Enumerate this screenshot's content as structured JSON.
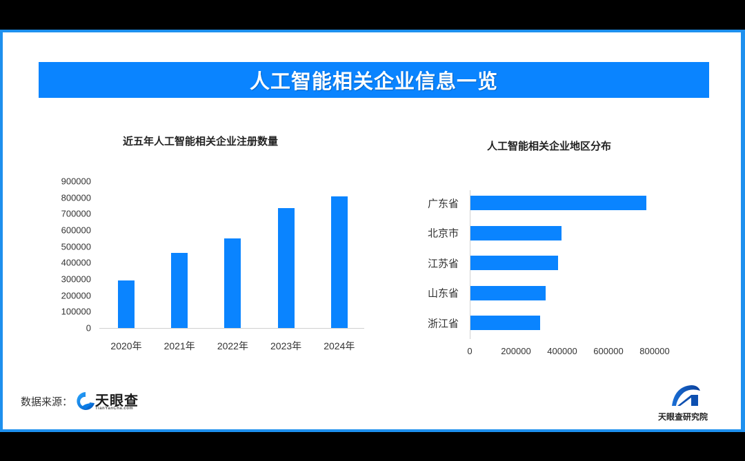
{
  "banner": {
    "title": "人工智能相关企业信息一览"
  },
  "chart_data": [
    {
      "type": "bar",
      "orientation": "vertical",
      "title": "近五年人工智能相关企业注册数量",
      "categories": [
        "2020年",
        "2021年",
        "2022年",
        "2023年",
        "2024年"
      ],
      "values": [
        290000,
        460000,
        550000,
        735000,
        805000
      ],
      "xlabel": "",
      "ylabel": "",
      "ylim": [
        0,
        900000
      ],
      "yticks": [
        "0",
        "100000",
        "200000",
        "300000",
        "400000",
        "500000",
        "600000",
        "700000",
        "800000",
        "900000"
      ],
      "grid": false,
      "legend": "none",
      "color": "#0a84ff"
    },
    {
      "type": "bar",
      "orientation": "horizontal",
      "title": "人工智能相关企业地区分布",
      "categories": [
        "广东省",
        "北京市",
        "江苏省",
        "山东省",
        "浙江省"
      ],
      "values": [
        760000,
        395000,
        380000,
        325000,
        300000
      ],
      "xlabel": "",
      "ylabel": "",
      "xlim": [
        0,
        800000
      ],
      "xticks": [
        "0",
        "200000",
        "400000",
        "600000",
        "800000"
      ],
      "grid": false,
      "legend": "none",
      "color": "#0a84ff"
    }
  ],
  "footer": {
    "source_label": "数据来源：",
    "source_logo_name": "天眼查",
    "source_logo_sub": "TianYanCha.com",
    "institute_logo_name": "天眼查研究院"
  },
  "colors": {
    "accent": "#0a84ff",
    "frame_border": "#1e90ee",
    "background_outer": "#000000",
    "panel": "#ffffff"
  }
}
